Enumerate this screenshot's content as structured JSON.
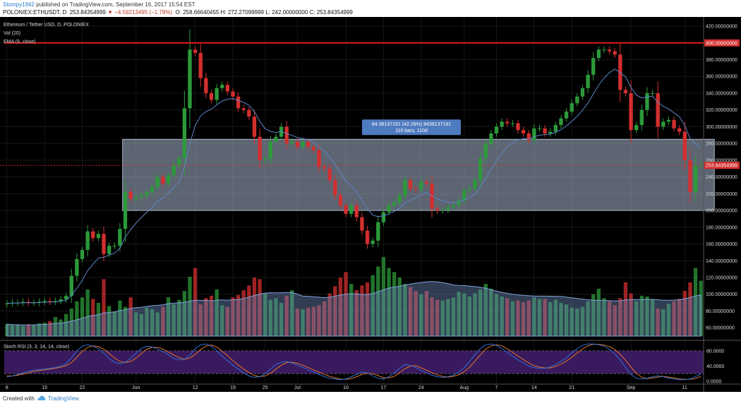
{
  "header": {
    "author": "Stompy1942",
    "published": "published on TradingView.com, September 16, 2017 15:54 EST",
    "symbol": "POLONIEX:ETHUSDT, D",
    "last": "253.84354999",
    "change": "▼ −4.59213495 (−1.78%)",
    "ohlc": "O: 258.66640455  H: 272.27099999  L: 242.00000000  C: 253.84354999"
  },
  "legend": {
    "name": "Ethereum / Tether USD, D, POLONIEX",
    "vol": "Vol (20)",
    "ema": "EMA (9, close)",
    "stoch": "Stoch RSI (3, 3, 14, 14, close)"
  },
  "footer": {
    "created": "Created with",
    "brand": "TradingView"
  },
  "colors": {
    "background": "#000000",
    "up": "#2c9a3a",
    "down": "#d32f2f",
    "ema": "#5b86c9",
    "resistance": "#e31b1b",
    "box_fill": "#a9b8cf",
    "stoch_k": "#2f6fd6",
    "stoch_d": "#e0762a",
    "stoch_band": "#3a1a5e"
  },
  "chart_data": {
    "type": "candlestick",
    "title": "Ethereum / Tether USD, D, POLONIEX",
    "price_axis": {
      "ylim": [
        45,
        431
      ],
      "ticks": [
        "420.00000000",
        "400.00000000",
        "380.00000000",
        "360.00000000",
        "340.00000000",
        "320.00000000",
        "300.00000000",
        "280.00000000",
        "260.00000000",
        "240.00000000",
        "220.00000000",
        "200.00000000",
        "180.00000000",
        "160.00000000",
        "140.00000000",
        "120.00000000",
        "100.00000000",
        "80.00000000",
        "60.00000000"
      ]
    },
    "x_axis": {
      "ticks": [
        {
          "label": "8",
          "i": 0
        },
        {
          "label": "15",
          "i": 7
        },
        {
          "label": "22",
          "i": 14
        },
        {
          "label": "Jun",
          "i": 24
        },
        {
          "label": "12",
          "i": 35
        },
        {
          "label": "19",
          "i": 42
        },
        {
          "label": "25",
          "i": 48
        },
        {
          "label": "Jul",
          "i": 54
        },
        {
          "label": "10",
          "i": 63
        },
        {
          "label": "17",
          "i": 70
        },
        {
          "label": "24",
          "i": 77
        },
        {
          "label": "Aug",
          "i": 85
        },
        {
          "label": "7",
          "i": 91
        },
        {
          "label": "14",
          "i": 98
        },
        {
          "label": "21",
          "i": 105
        },
        {
          "label": "Sep",
          "i": 116
        },
        {
          "label": "11",
          "i": 126
        }
      ]
    },
    "resistance": {
      "value": 400,
      "label": "400.00000000"
    },
    "last_price": {
      "value": 253.84,
      "label": "253.84354999"
    },
    "range_box": {
      "from_index": 22,
      "to_index": 131,
      "low": 200,
      "high": 285,
      "label_line1": "84.38137191 (42.28%) 8438137191",
      "label_line2": "110 bars, 110d"
    },
    "close": [
      89,
      90,
      90,
      91,
      90,
      90,
      91,
      92,
      91,
      92,
      94,
      98,
      122,
      142,
      153,
      175,
      167,
      172,
      148,
      158,
      158,
      178,
      222,
      214,
      216,
      218,
      222,
      228,
      240,
      232,
      242,
      254,
      262,
      322,
      392,
      388,
      358,
      340,
      332,
      346,
      350,
      342,
      336,
      322,
      320,
      312,
      288,
      260,
      262,
      282,
      288,
      300,
      280,
      282,
      276,
      282,
      276,
      272,
      252,
      250,
      236,
      218,
      206,
      196,
      206,
      192,
      176,
      160,
      164,
      186,
      198,
      206,
      210,
      218,
      236,
      226,
      225,
      234,
      232,
      202,
      200,
      201,
      204,
      206,
      212,
      224,
      226,
      236,
      262,
      280,
      292,
      300,
      306,
      304,
      304,
      296,
      292,
      284,
      298,
      298,
      292,
      294,
      302,
      310,
      318,
      328,
      336,
      346,
      362,
      382,
      392,
      392,
      390,
      386,
      344,
      340,
      296,
      302,
      320,
      340,
      340,
      300,
      306,
      308,
      298,
      294,
      260,
      222,
      254,
      254
    ],
    "volume": [
      15,
      14,
      14,
      13,
      15,
      14,
      16,
      17,
      19,
      24,
      21,
      28,
      35,
      44,
      49,
      59,
      47,
      42,
      72,
      38,
      31,
      45,
      37,
      49,
      30,
      28,
      36,
      34,
      30,
      37,
      49,
      40,
      46,
      57,
      75,
      86,
      40,
      48,
      51,
      59,
      39,
      37,
      49,
      52,
      58,
      64,
      74,
      72,
      54,
      46,
      48,
      42,
      51,
      58,
      35,
      34,
      36,
      37,
      39,
      44,
      54,
      63,
      74,
      81,
      66,
      58,
      64,
      68,
      77,
      88,
      100,
      86,
      81,
      74,
      66,
      62,
      57,
      53,
      57,
      49,
      46,
      45,
      47,
      49,
      56,
      54,
      50,
      54,
      59,
      66,
      60,
      53,
      50,
      48,
      44,
      45,
      43,
      45,
      49,
      47,
      47,
      43,
      46,
      42,
      40,
      36,
      35,
      37,
      44,
      53,
      60,
      48,
      44,
      39,
      48,
      68,
      54,
      44,
      51,
      50,
      46,
      35,
      34,
      41,
      44,
      47,
      57,
      68,
      86,
      70
    ],
    "ema": [
      89.2,
      89.4,
      89.5,
      89.8,
      89.8,
      89.9,
      90.1,
      90.5,
      90.6,
      90.9,
      91.5,
      92.8,
      98.6,
      107.3,
      116.5,
      128.2,
      135.9,
      143.1,
      144.1,
      146.8,
      149.0,
      154.8,
      168.3,
      177.4,
      185.1,
      191.7,
      197.8,
      203.8,
      211.0,
      215.2,
      220.6,
      227.3,
      234.2,
      251.7,
      279.7,
      301.3,
      312.7,
      318.1,
      320.9,
      325.9,
      330.7,
      332.9,
      333.6,
      331.3,
      329.0,
      325.6,
      318.1,
      306.5,
      297.6,
      294.4,
      293.1,
      294.5,
      291.6,
      289.7,
      287.0,
      286.0,
      284.0,
      281.6,
      275.7,
      270.5,
      263.6,
      254.6,
      244.9,
      235.1,
      229.3,
      221.8,
      212.6,
      202.0,
      194.4,
      192.7,
      193.7,
      196.1,
      198.9,
      202.7,
      209.4,
      212.7,
      215.2,
      218.9,
      221.5,
      217.6,
      214.1,
      211.5,
      210.0,
      209.2,
      209.8,
      212.7,
      215.4,
      219.5,
      228.0,
      238.4,
      249.1,
      259.3,
      268.6,
      275.6,
      281.3,
      284.2,
      285.8,
      285.5,
      288.0,
      290.0,
      290.4,
      291.1,
      293.3,
      296.6,
      300.9,
      306.4,
      312.4,
      319.7,
      328.2,
      339.0,
      349.7,
      358.1,
      364.5,
      368.8,
      364.3,
      359.5,
      346.8,
      337.9,
      334.3,
      335.4,
      336.4,
      329.1,
      324.5,
      321.2,
      316.5,
      311.9,
      301.5,
      285.6,
      279.3,
      274.3
    ],
    "stoch_axis": {
      "ticks": [
        "80.0000",
        "40.0000",
        "0.0000"
      ],
      "bands": [
        80,
        20
      ]
    },
    "stoch_k": [
      12,
      14,
      18,
      22,
      26,
      29,
      31,
      32,
      34,
      36,
      40,
      46,
      62,
      80,
      92,
      96,
      92,
      86,
      74,
      60,
      50,
      46,
      50,
      60,
      74,
      86,
      92,
      90,
      84,
      78,
      70,
      60,
      56,
      58,
      68,
      86,
      96,
      98,
      92,
      80,
      66,
      54,
      42,
      32,
      22,
      14,
      10,
      12,
      20,
      32,
      44,
      50,
      52,
      48,
      42,
      36,
      30,
      24,
      18,
      12,
      8,
      6,
      4,
      6,
      12,
      18,
      24,
      22,
      14,
      8,
      6,
      12,
      22,
      34,
      44,
      42,
      36,
      28,
      22,
      16,
      12,
      10,
      12,
      16,
      24,
      36,
      52,
      70,
      86,
      96,
      98,
      94,
      86,
      76,
      66,
      56,
      48,
      40,
      36,
      34,
      34,
      38,
      44,
      52,
      62,
      74,
      86,
      94,
      98,
      98,
      96,
      92,
      84,
      72,
      56,
      36,
      18,
      8,
      6,
      8,
      12,
      14,
      12,
      8,
      6,
      4,
      4,
      6,
      12,
      20
    ],
    "stoch_d": [
      14,
      14,
      16,
      19,
      22,
      26,
      28,
      30,
      32,
      34,
      37,
      41,
      49,
      63,
      78,
      89,
      93,
      91,
      84,
      73,
      61,
      52,
      49,
      52,
      61,
      73,
      84,
      89,
      89,
      84,
      77,
      69,
      62,
      58,
      61,
      71,
      83,
      93,
      95,
      90,
      79,
      67,
      54,
      43,
      32,
      23,
      15,
      12,
      14,
      21,
      32,
      42,
      49,
      50,
      47,
      42,
      36,
      30,
      24,
      18,
      13,
      9,
      6,
      5,
      7,
      12,
      18,
      21,
      20,
      15,
      9,
      9,
      13,
      23,
      33,
      40,
      41,
      35,
      29,
      22,
      17,
      13,
      11,
      13,
      17,
      25,
      37,
      53,
      69,
      84,
      93,
      96,
      93,
      85,
      76,
      66,
      57,
      48,
      41,
      37,
      35,
      35,
      39,
      45,
      53,
      63,
      74,
      85,
      93,
      97,
      97,
      95,
      91,
      83,
      71,
      55,
      37,
      21,
      11,
      7,
      9,
      11,
      13,
      11,
      9,
      6,
      5,
      5,
      7,
      13
    ]
  }
}
